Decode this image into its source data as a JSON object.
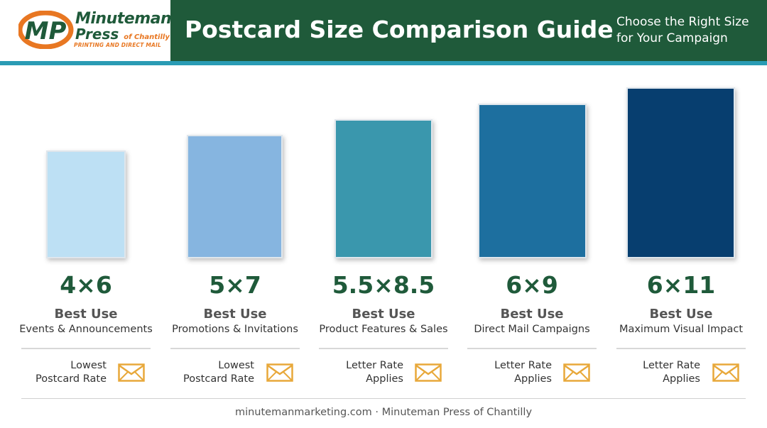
{
  "header": {
    "logo": {
      "mark": "MP",
      "name_line1": "Minuteman",
      "name_line2": "Press",
      "location": "of Chantilly",
      "tagline": "PRINTING AND DIRECT MAIL"
    },
    "title": "Postcard Size Comparison Guide",
    "subtitle_line1": "Choose the Right Size",
    "subtitle_line2": "for Your Campaign"
  },
  "colors": {
    "header_green": "#1f5a3a",
    "accent_teal": "#2a9bb4",
    "logo_orange": "#e87722",
    "envelope_orange": "#e8a83a"
  },
  "postcards": [
    {
      "size": "4×6",
      "best_label": "Best Use",
      "use": "Events & Announcements",
      "rate_line1": "Lowest",
      "rate_line2": "Postcard Rate",
      "color": "#bde0f4",
      "icon": "envelope-icon"
    },
    {
      "size": "5×7",
      "best_label": "Best Use",
      "use": "Promotions & Invitations",
      "rate_line1": "Lowest",
      "rate_line2": "Postcard Rate",
      "color": "#86b5e0",
      "icon": "envelope-icon"
    },
    {
      "size": "5.5×8.5",
      "best_label": "Best Use",
      "use": "Product Features & Sales",
      "rate_line1": "Letter Rate",
      "rate_line2": "Applies",
      "color": "#3a97ad",
      "icon": "envelope-icon"
    },
    {
      "size": "6×9",
      "best_label": "Best Use",
      "use": "Direct Mail Campaigns",
      "rate_line1": "Letter Rate",
      "rate_line2": "Applies",
      "color": "#1d6f9f",
      "icon": "envelope-icon"
    },
    {
      "size": "6×11",
      "best_label": "Best Use",
      "use": "Maximum Visual Impact",
      "rate_line1": "Letter Rate",
      "rate_line2": "Applies",
      "color": "#073e6f",
      "icon": "envelope-icon"
    }
  ],
  "footer": {
    "text": "minutemanmarketing.com · Minuteman Press of Chantilly"
  }
}
